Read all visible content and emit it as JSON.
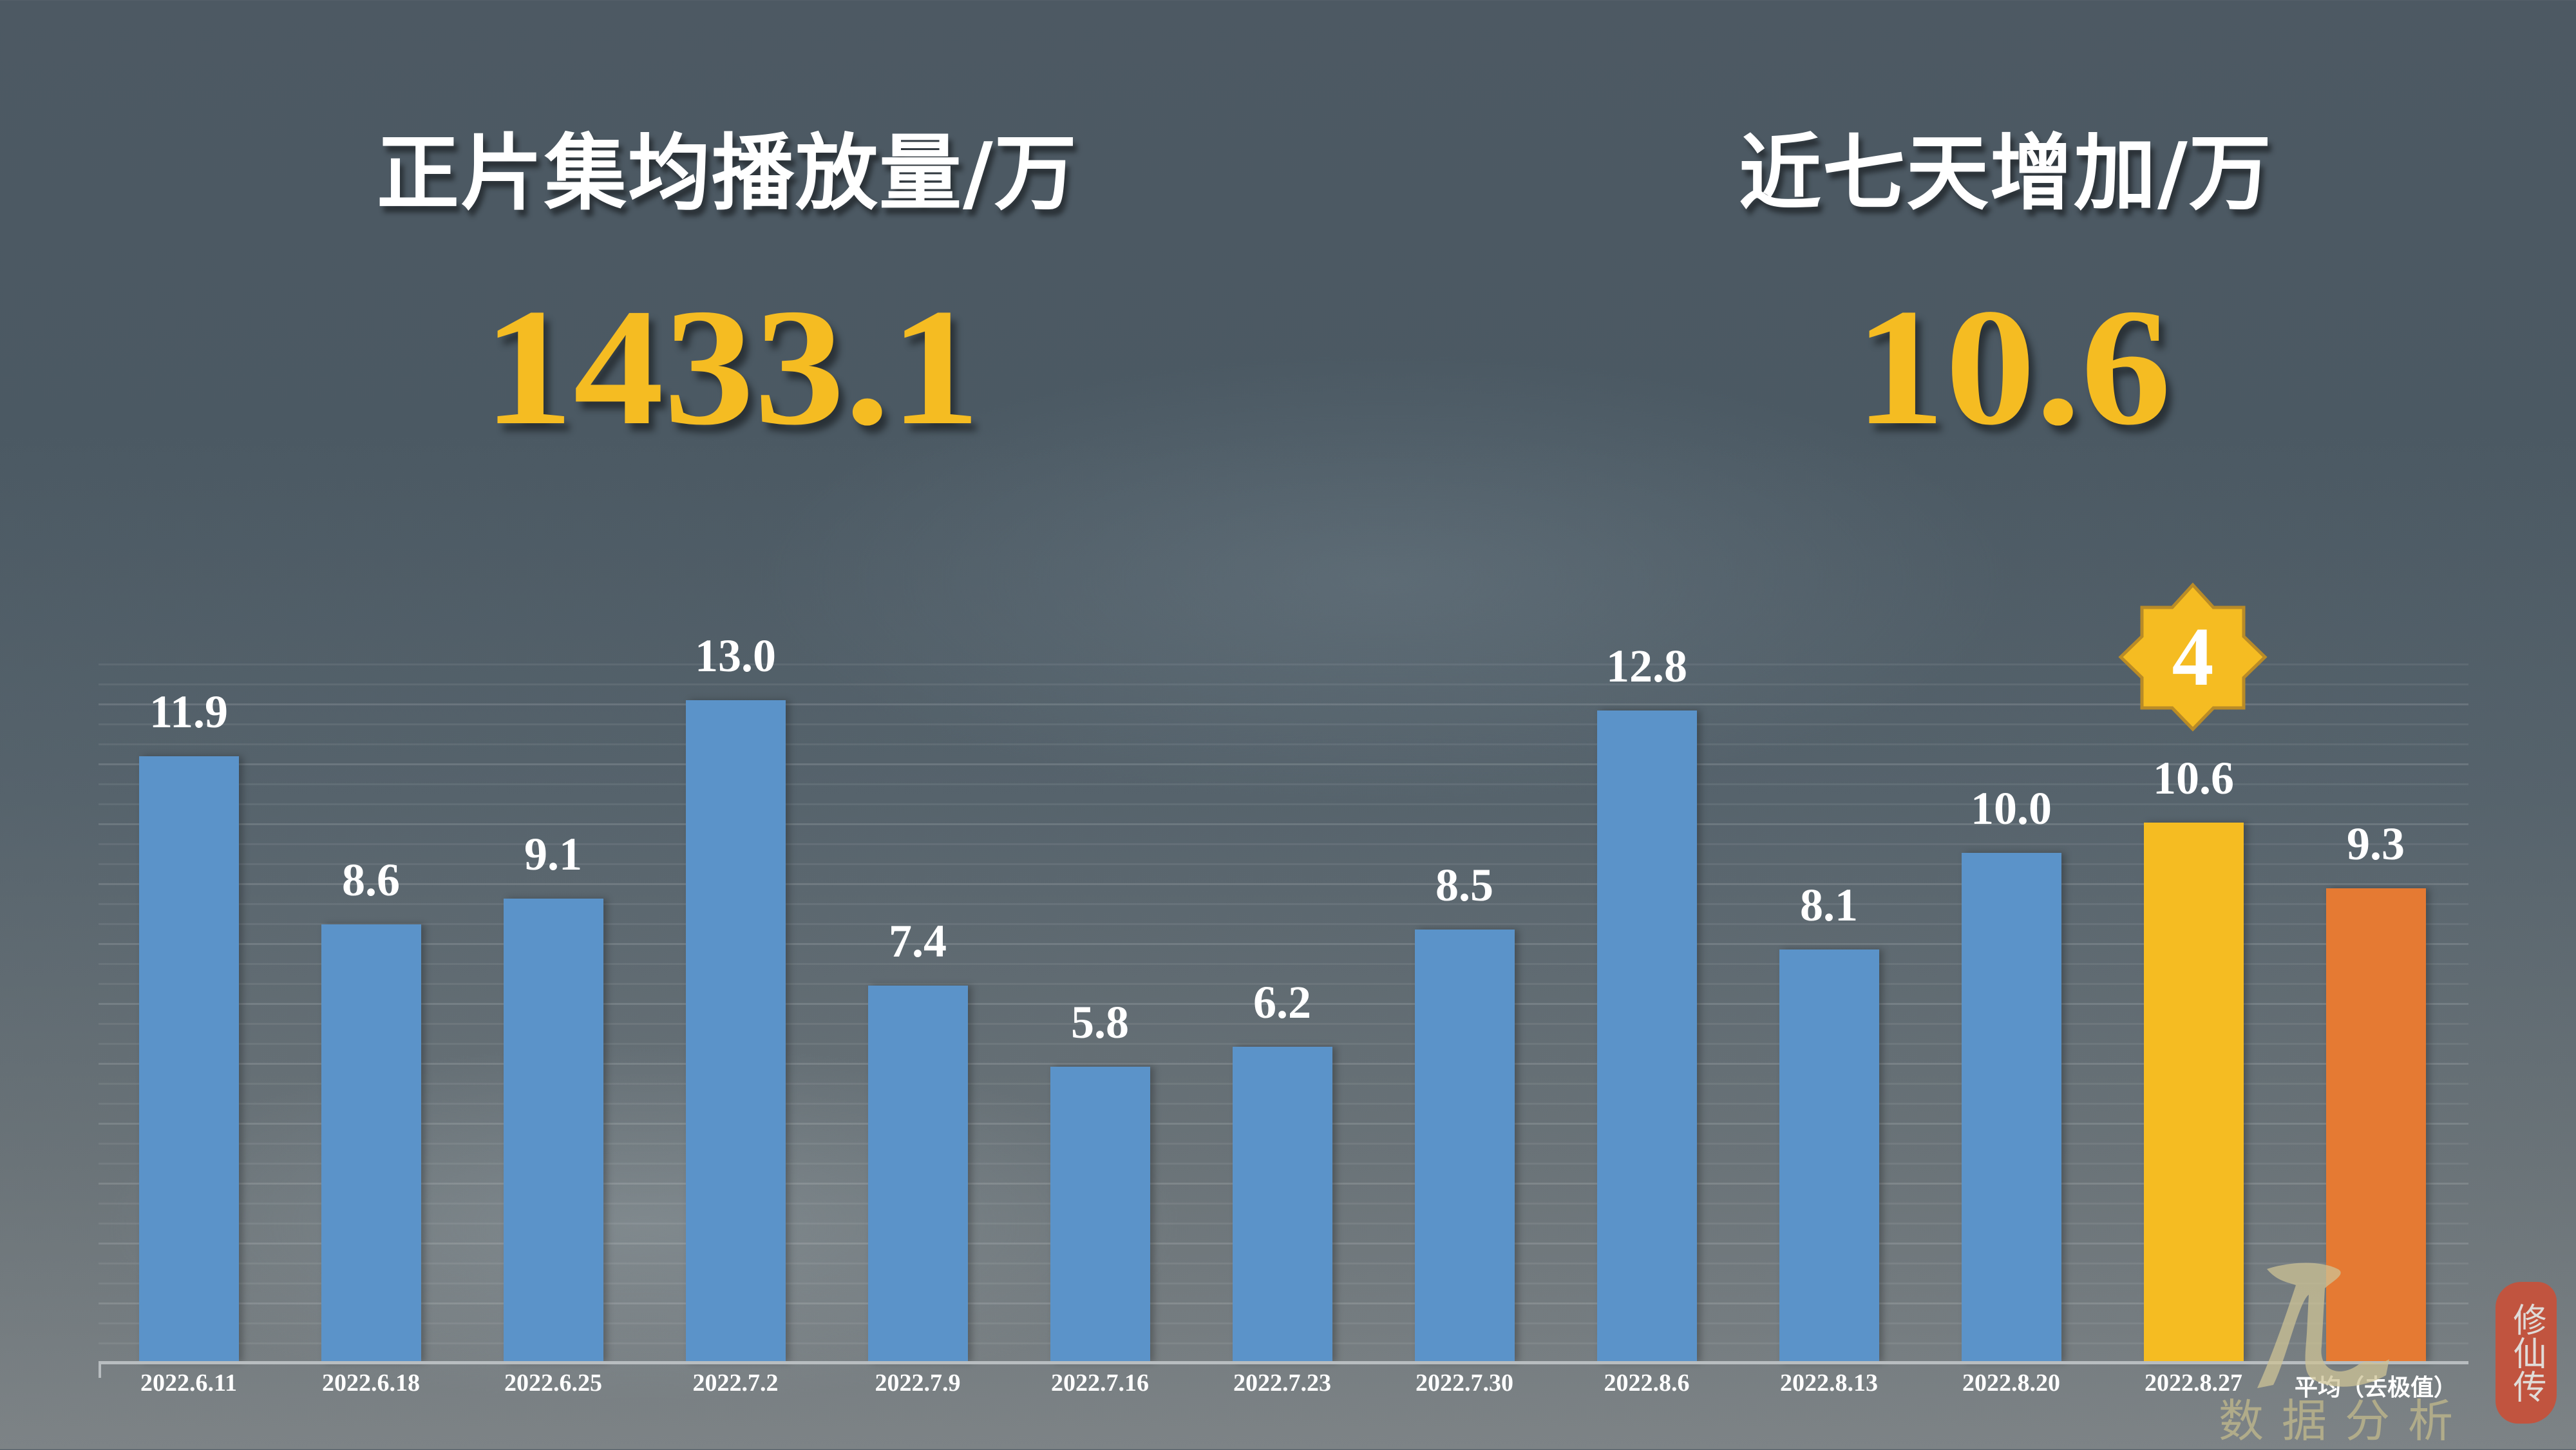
{
  "kpis": {
    "left": {
      "title": "正片集均播放量/万",
      "value": "1433.1"
    },
    "right": {
      "title": "近七天增加/万",
      "value": "10.6"
    }
  },
  "badge": {
    "icon": "eight-point-star-icon",
    "text": "4",
    "color": "#F5BC22"
  },
  "colors": {
    "bar_default": "#5B93C9",
    "bar_highlight": "#F5BC22",
    "bar_average": "#E57A33",
    "kpi_value": "#F5BC22"
  },
  "watermark": {
    "brush_char": "风",
    "text": "数据分析",
    "seal": "修仙传"
  },
  "chart_data": {
    "type": "bar",
    "title": "",
    "xlabel": "",
    "ylabel": "",
    "ylim": [
      0,
      14
    ],
    "grid": true,
    "legend": "none",
    "categories": [
      "2022.6.11",
      "2022.6.18",
      "2022.6.25",
      "2022.7.2",
      "2022.7.9",
      "2022.7.16",
      "2022.7.23",
      "2022.7.30",
      "2022.8.6",
      "2022.8.13",
      "2022.8.20",
      "2022.8.27",
      "平均（去极值）"
    ],
    "values": [
      11.9,
      8.6,
      9.1,
      13.0,
      7.4,
      5.8,
      6.2,
      8.5,
      12.8,
      8.1,
      10.0,
      10.6,
      9.3
    ],
    "value_labels": [
      "11.9",
      "8.6",
      "9.1",
      "13.0",
      "7.4",
      "5.8",
      "6.2",
      "8.5",
      "12.8",
      "8.1",
      "10.0",
      "10.6",
      "9.3"
    ],
    "bar_roles": [
      "default",
      "default",
      "default",
      "default",
      "default",
      "default",
      "default",
      "default",
      "default",
      "default",
      "default",
      "highlight",
      "average"
    ],
    "annotations": [
      {
        "category": "2022.8.27",
        "type": "star-badge",
        "text": "4"
      }
    ]
  }
}
